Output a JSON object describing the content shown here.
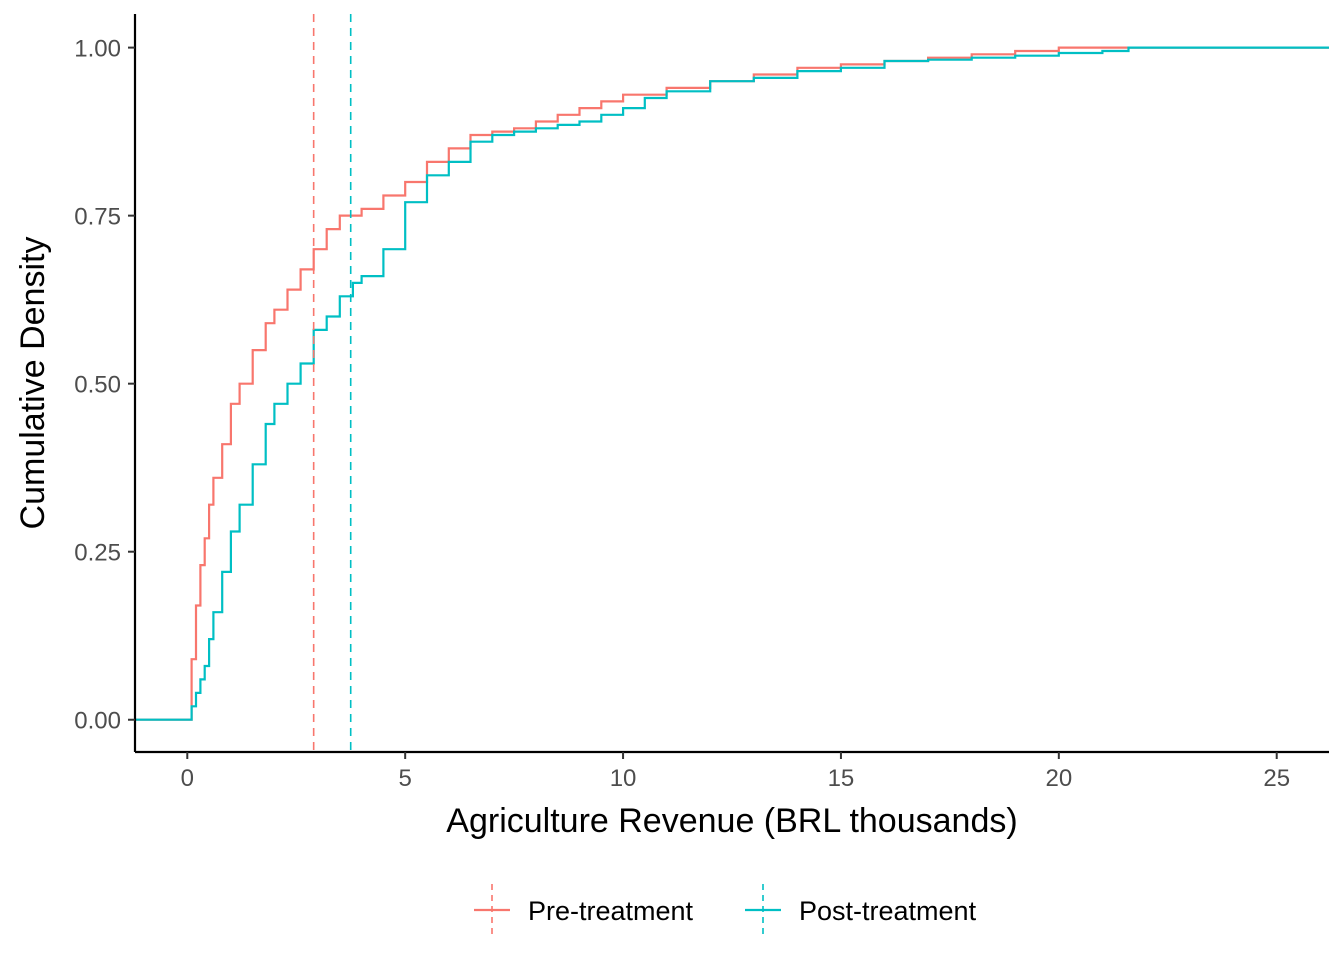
{
  "chart_data": {
    "type": "line",
    "title": "",
    "xlabel": "Agriculture Revenue (BRL thousands)",
    "ylabel": "Cumulative Density",
    "xlim": [
      -1.2,
      26.2
    ],
    "ylim": [
      -0.048,
      1.05
    ],
    "x_ticks": [
      0,
      5,
      10,
      15,
      20,
      25
    ],
    "x_tick_labels": [
      "0",
      "5",
      "10",
      "15",
      "20",
      "25"
    ],
    "y_ticks": [
      0,
      0.25,
      0.5,
      0.75,
      1.0
    ],
    "y_tick_labels": [
      "0.00",
      "0.25",
      "0.50",
      "0.75",
      "1.00"
    ],
    "grid": false,
    "legend_position": "bottom",
    "series": [
      {
        "name": "Pre-treatment",
        "color": "#F8766D",
        "mean": 2.9,
        "x": [
          -1.2,
          0.05,
          0.1,
          0.2,
          0.3,
          0.4,
          0.5,
          0.6,
          0.8,
          1.0,
          1.2,
          1.5,
          1.8,
          2.0,
          2.3,
          2.6,
          2.9,
          3.2,
          3.5,
          4.0,
          4.5,
          5.0,
          5.5,
          6.0,
          6.5,
          7.0,
          7.5,
          8.0,
          8.5,
          9.0,
          9.5,
          10.0,
          11.0,
          12.0,
          13.0,
          14.0,
          15.0,
          16.0,
          17.0,
          18.0,
          19.0,
          20.0,
          21.0,
          26.2
        ],
        "y": [
          0.0,
          0.0,
          0.09,
          0.17,
          0.23,
          0.27,
          0.32,
          0.36,
          0.41,
          0.47,
          0.5,
          0.55,
          0.59,
          0.61,
          0.64,
          0.67,
          0.7,
          0.73,
          0.75,
          0.76,
          0.78,
          0.8,
          0.83,
          0.85,
          0.87,
          0.875,
          0.88,
          0.89,
          0.9,
          0.91,
          0.92,
          0.93,
          0.94,
          0.95,
          0.96,
          0.97,
          0.975,
          0.98,
          0.985,
          0.99,
          0.995,
          1.0,
          1.0,
          1.0
        ]
      },
      {
        "name": "Post-treatment",
        "color": "#00BFC4",
        "mean": 3.75,
        "x": [
          -1.2,
          0.05,
          0.1,
          0.2,
          0.3,
          0.4,
          0.5,
          0.6,
          0.8,
          1.0,
          1.2,
          1.5,
          1.8,
          2.0,
          2.3,
          2.6,
          2.9,
          3.2,
          3.5,
          3.8,
          4.0,
          4.5,
          5.0,
          5.5,
          6.0,
          6.5,
          7.0,
          7.5,
          8.0,
          8.5,
          9.0,
          9.5,
          10.0,
          10.5,
          11.0,
          12.0,
          13.0,
          14.0,
          15.0,
          16.0,
          17.0,
          18.0,
          19.0,
          20.0,
          21.0,
          21.6,
          26.2
        ],
        "y": [
          0.0,
          0.0,
          0.02,
          0.04,
          0.06,
          0.08,
          0.12,
          0.16,
          0.22,
          0.28,
          0.32,
          0.38,
          0.44,
          0.47,
          0.5,
          0.53,
          0.58,
          0.6,
          0.63,
          0.65,
          0.66,
          0.7,
          0.77,
          0.81,
          0.83,
          0.86,
          0.87,
          0.875,
          0.88,
          0.885,
          0.89,
          0.9,
          0.91,
          0.925,
          0.935,
          0.95,
          0.955,
          0.965,
          0.97,
          0.98,
          0.982,
          0.985,
          0.988,
          0.992,
          0.995,
          1.0,
          1.0
        ]
      }
    ]
  }
}
